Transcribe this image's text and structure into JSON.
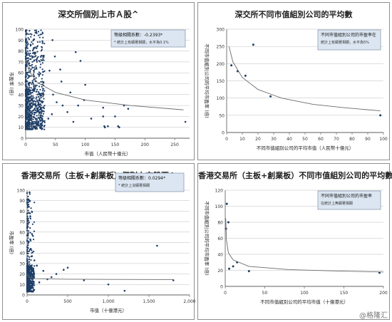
{
  "chart_data": [
    {
      "type": "scatter",
      "title": "深交所個別上市Ａ股^",
      "xlabel": "市值（人民幣十億元）",
      "ylabel": "市盈率 (倍)",
      "xlim": [
        0,
        275
      ],
      "ylim": [
        0,
        100
      ],
      "xticks": [
        "0",
        "50",
        "100",
        "150",
        "200",
        "250"
      ],
      "yticks": [
        "0",
        "10",
        "20",
        "30",
        "40",
        "50",
        "60",
        "70",
        "80",
        "90",
        "100"
      ],
      "grid": "horizontal",
      "trendline": "power",
      "legend": {
        "text": "等級相關系數：-0.2393*",
        "note": "* 統計上有顯著相關，水平為0.1%"
      },
      "outliers": [
        {
          "x": 84,
          "y": 79
        },
        {
          "x": 92,
          "y": 71
        },
        {
          "x": 100,
          "y": 49
        },
        {
          "x": 60,
          "y": 52
        },
        {
          "x": 98,
          "y": 35
        },
        {
          "x": 130,
          "y": 28
        },
        {
          "x": 130,
          "y": 20
        },
        {
          "x": 132,
          "y": 11
        },
        {
          "x": 133,
          "y": 10
        },
        {
          "x": 138,
          "y": 11
        },
        {
          "x": 155,
          "y": 11
        },
        {
          "x": 157,
          "y": 10
        },
        {
          "x": 165,
          "y": 30
        },
        {
          "x": 172,
          "y": 27
        },
        {
          "x": 150,
          "y": 20
        },
        {
          "x": 110,
          "y": 18
        },
        {
          "x": 268,
          "y": 15
        },
        {
          "x": 80,
          "y": 15
        },
        {
          "x": 70,
          "y": 24
        },
        {
          "x": 62,
          "y": 30
        },
        {
          "x": 75,
          "y": 42
        },
        {
          "x": 58,
          "y": 63
        },
        {
          "x": 49,
          "y": 75
        },
        {
          "x": 45,
          "y": 90
        },
        {
          "x": 40,
          "y": 62
        },
        {
          "x": 46,
          "y": 40
        },
        {
          "x": 52,
          "y": 33
        },
        {
          "x": 44,
          "y": 22
        },
        {
          "x": 38,
          "y": 18
        },
        {
          "x": 88,
          "y": 30
        }
      ],
      "trend_points": [
        {
          "x": 1,
          "y": 72
        },
        {
          "x": 5,
          "y": 62
        },
        {
          "x": 20,
          "y": 51
        },
        {
          "x": 50,
          "y": 42
        },
        {
          "x": 100,
          "y": 35
        },
        {
          "x": 175,
          "y": 30
        },
        {
          "x": 265,
          "y": 26
        }
      ]
    },
    {
      "type": "scatter",
      "title": "深交所不同市值組別公司的平均數",
      "xlabel": "不同市值組別公司的平均市值（人民幣十億元）",
      "ylabel": "不同市值組別公司的平均市盈率 (倍)",
      "xlim": [
        0,
        100
      ],
      "ylim": [
        0,
        300
      ],
      "xticks": [
        "0",
        "10",
        "20",
        "30",
        "40",
        "50",
        "60",
        "70",
        "80",
        "90",
        "100"
      ],
      "yticks": [
        "0",
        "50",
        "100",
        "150",
        "200",
        "250",
        "300"
      ],
      "grid": "horizontal",
      "trendline": "power",
      "legend": {
        "text": "不同市值組別公司的市盈率在",
        "note": "統計上有顯著相關，水平為5%"
      },
      "points": [
        {
          "x": 3,
          "y": 195
        },
        {
          "x": 7,
          "y": 178
        },
        {
          "x": 12,
          "y": 165
        },
        {
          "x": 17,
          "y": 255
        },
        {
          "x": 28,
          "y": 105
        },
        {
          "x": 98,
          "y": 50
        }
      ],
      "trend_points": [
        {
          "x": 1.5,
          "y": 250
        },
        {
          "x": 4,
          "y": 205
        },
        {
          "x": 10,
          "y": 160
        },
        {
          "x": 20,
          "y": 125
        },
        {
          "x": 35,
          "y": 100
        },
        {
          "x": 55,
          "y": 82
        },
        {
          "x": 75,
          "y": 72
        },
        {
          "x": 98,
          "y": 63
        }
      ]
    },
    {
      "type": "scatter",
      "title": "香港交易所（主板+創業板）個別上市股票^",
      "xlabel": "市值（十億港元）",
      "ylabel": "市盈率 (倍)",
      "xlim": [
        0,
        2000
      ],
      "ylim": [
        0,
        100
      ],
      "xticks": [
        "0",
        "500",
        "1,000",
        "1,500",
        "2,000"
      ],
      "yticks": [
        "0",
        "10",
        "20",
        "30",
        "40",
        "50",
        "60",
        "70",
        "80",
        "90",
        "100"
      ],
      "grid": "horizontal",
      "trendline": "power",
      "legend": {
        "text": "等級相關系數：0.0294*",
        "note": "* 統計上沒顯著相關"
      },
      "outliers": [
        {
          "x": 1600,
          "y": 47
        },
        {
          "x": 500,
          "y": 26
        },
        {
          "x": 450,
          "y": 24
        },
        {
          "x": 360,
          "y": 20
        },
        {
          "x": 300,
          "y": 17
        },
        {
          "x": 250,
          "y": 15
        },
        {
          "x": 1000,
          "y": 10
        },
        {
          "x": 1200,
          "y": 4
        },
        {
          "x": 1800,
          "y": 14
        },
        {
          "x": 700,
          "y": 14
        },
        {
          "x": 200,
          "y": 23
        },
        {
          "x": 150,
          "y": 12
        },
        {
          "x": 120,
          "y": 28
        },
        {
          "x": 90,
          "y": 33
        },
        {
          "x": 60,
          "y": 37
        },
        {
          "x": 35,
          "y": 78
        },
        {
          "x": 30,
          "y": 98
        },
        {
          "x": 25,
          "y": 90
        },
        {
          "x": 40,
          "y": 53
        },
        {
          "x": 45,
          "y": 44
        }
      ],
      "trend_points": [
        {
          "x": 2,
          "y": 20
        },
        {
          "x": 20,
          "y": 17
        },
        {
          "x": 100,
          "y": 15.5
        },
        {
          "x": 500,
          "y": 15
        },
        {
          "x": 1000,
          "y": 14.8
        },
        {
          "x": 1800,
          "y": 14.7
        }
      ]
    },
    {
      "type": "scatter",
      "title": "香港交易所（主板+創業板）不同市值組別公司的平均數",
      "xlabel": "不同市值組別公司的平均市值（十億港元）",
      "ylabel": "不同市值組別公司的平均市盈率 (倍)",
      "xlim": [
        0,
        200
      ],
      "ylim": [
        0,
        120
      ],
      "xticks": [
        "0",
        "50",
        "100",
        "150",
        "200"
      ],
      "yticks": [
        "0",
        "20",
        "40",
        "60",
        "80",
        "100",
        "120"
      ],
      "grid": "horizontal",
      "trendline": "power",
      "legend": {
        "text": "不同市值組別公司的市盈率",
        "note": "在統計上無顯著相關"
      },
      "points": [
        {
          "x": 1,
          "y": 72
        },
        {
          "x": 2,
          "y": 103
        },
        {
          "x": 4,
          "y": 80
        },
        {
          "x": 5,
          "y": 22
        },
        {
          "x": 10,
          "y": 25
        },
        {
          "x": 15,
          "y": 30
        },
        {
          "x": 30,
          "y": 19
        },
        {
          "x": 195,
          "y": 17
        }
      ],
      "trend_points": [
        {
          "x": 0.6,
          "y": 85
        },
        {
          "x": 1.5,
          "y": 58
        },
        {
          "x": 4,
          "y": 42
        },
        {
          "x": 10,
          "y": 33
        },
        {
          "x": 30,
          "y": 25
        },
        {
          "x": 80,
          "y": 21
        },
        {
          "x": 130,
          "y": 19.5
        },
        {
          "x": 200,
          "y": 18
        }
      ]
    }
  ],
  "watermark": "@格隆汇"
}
